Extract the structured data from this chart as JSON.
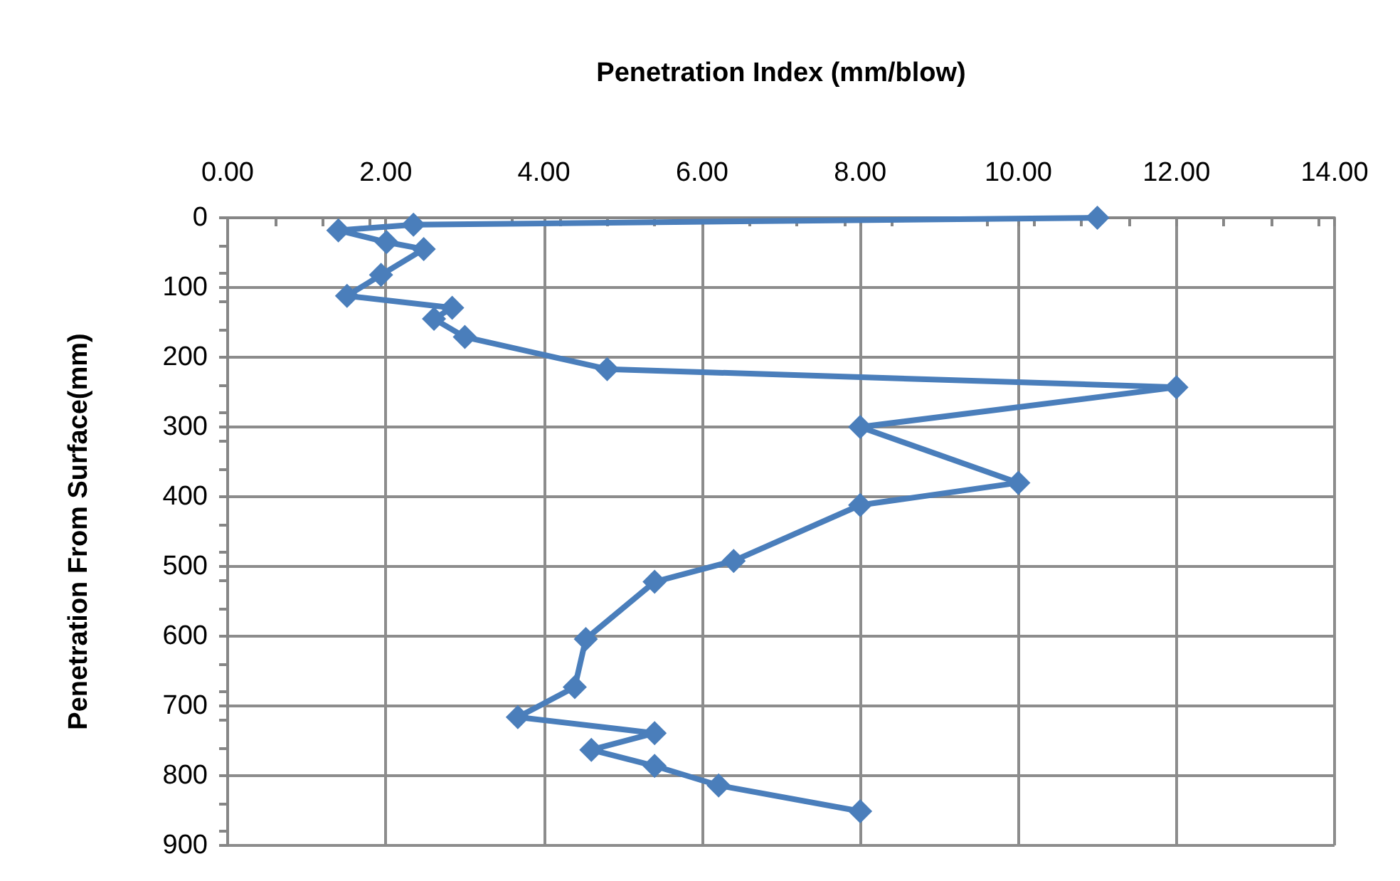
{
  "chart_data": {
    "type": "line",
    "xlabel": "Penetration Index (mm/blow)",
    "ylabel": "Penetration From Surface(mm)",
    "series": [
      {
        "color": "#4a7ebb",
        "x": [
          11.0,
          2.35,
          1.4,
          2.01,
          2.48,
          1.94,
          1.51,
          2.84,
          2.61,
          3.0,
          4.8,
          12.0,
          8.0,
          10.0,
          8.0,
          6.4,
          5.4,
          4.53,
          4.39,
          3.67,
          5.4,
          4.6,
          5.4,
          6.21,
          8.0
        ],
        "values": [
          0,
          10,
          18,
          35,
          45,
          82,
          112,
          129,
          145,
          171,
          217,
          243,
          300,
          380,
          412,
          492,
          522,
          604,
          673,
          716,
          739,
          763,
          786,
          814,
          851
        ]
      }
    ],
    "xlim": [
      0,
      14
    ],
    "xticks": [
      {
        "value": 0,
        "label": "0.00"
      },
      {
        "value": 2,
        "label": "2.00"
      },
      {
        "value": 4,
        "label": "4.00"
      },
      {
        "value": 6,
        "label": "6.00"
      },
      {
        "value": 8,
        "label": "8.00"
      },
      {
        "value": 10,
        "label": "10.00"
      },
      {
        "value": 12,
        "label": "12.00"
      },
      {
        "value": 14,
        "label": "14.00"
      }
    ],
    "ylim": [
      900,
      0
    ],
    "yticks": [
      0,
      100,
      200,
      300,
      400,
      500,
      600,
      700,
      800,
      900
    ],
    "grid": true,
    "marker": "diamond"
  }
}
